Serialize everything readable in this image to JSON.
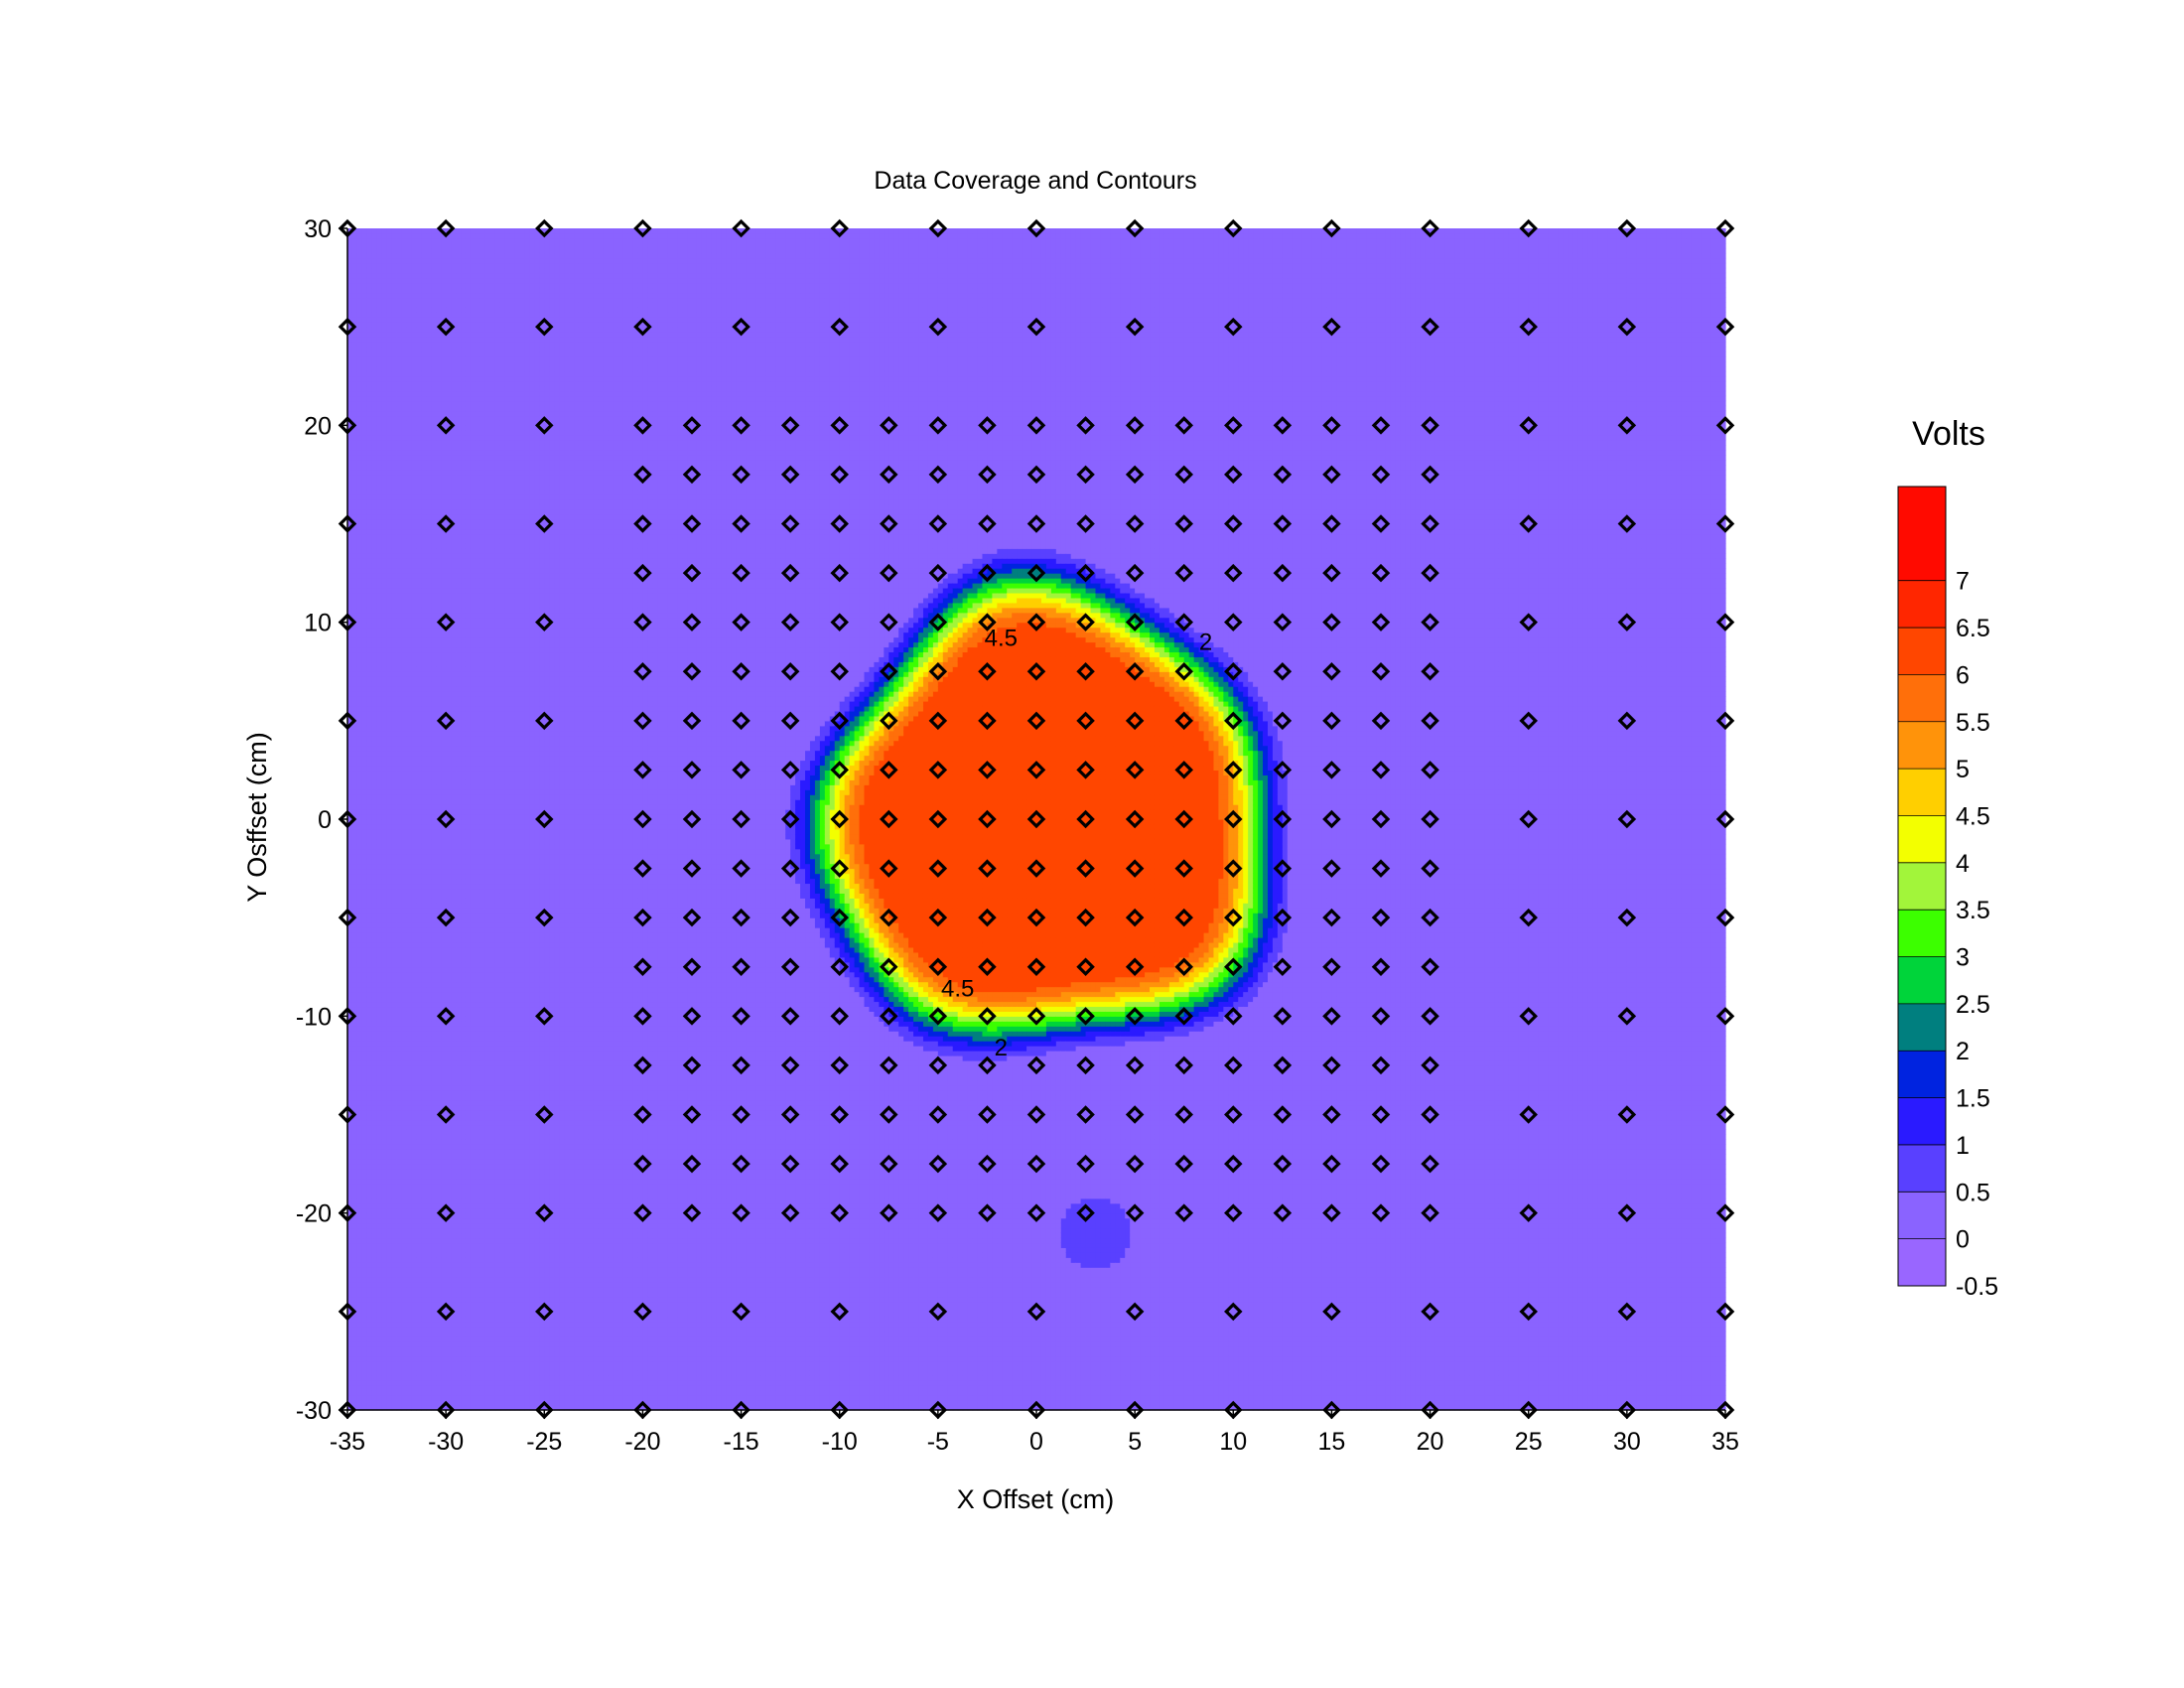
{
  "chart_data": {
    "type": "heatmap",
    "title": "Data Coverage and Contours",
    "xlabel": "X Offset (cm)",
    "ylabel": "Y Osffset (cm)",
    "xlim": [
      -35,
      35
    ],
    "ylim": [
      -30,
      30
    ],
    "x_ticks": [
      "-35",
      "-30",
      "-25",
      "-20",
      "-15",
      "-10",
      "-5",
      "0",
      "5",
      "10",
      "15",
      "20",
      "25",
      "30",
      "35"
    ],
    "y_ticks": [
      "30",
      "20",
      "10",
      "0",
      "-10",
      "-20",
      "-30"
    ],
    "grid": false,
    "marker_shape": "diamond",
    "coarse_grid_step": 5,
    "fine_grid_step": 2.5,
    "fine_grid_x_range": [
      -20,
      20
    ],
    "fine_grid_y_range": [
      -20,
      20
    ],
    "field": {
      "shape": "near-circular plateau",
      "center": [
        0.5,
        0.0
      ],
      "plateau_value": 6.3,
      "plateau_radius": 8.5,
      "edge_width": 5.0,
      "background_value": 0.1,
      "secondary_bump": {
        "center": [
          3,
          -21
        ],
        "peak_value": 0.7,
        "radius": 2
      }
    },
    "contour_labels": [
      {
        "text": "4.5",
        "x": -1.8,
        "y": 9.2
      },
      {
        "text": "2",
        "x": 8.6,
        "y": 9.0
      },
      {
        "text": "4.5",
        "x": -4.0,
        "y": -8.6
      },
      {
        "text": "2",
        "x": -1.8,
        "y": -11.6
      }
    ],
    "legend": {
      "title": "Volts",
      "position": "right",
      "range": [
        -0.5,
        8
      ],
      "tick_labels": [
        "7",
        "6.5",
        "6",
        "5.5",
        "5",
        "4.5",
        "4",
        "3.5",
        "3",
        "2.5",
        "2",
        "1.5",
        "1",
        "0.5",
        "0",
        "-0.5"
      ],
      "tick_values": [
        7,
        6.5,
        6,
        5.5,
        5,
        4.5,
        4,
        3.5,
        3,
        2.5,
        2,
        1.5,
        1,
        0.5,
        0,
        -0.5
      ],
      "bands": [
        {
          "lo": 7.0,
          "hi": 8.0,
          "color": "#ff0a00"
        },
        {
          "lo": 6.5,
          "hi": 7.0,
          "color": "#ff2600"
        },
        {
          "lo": 6.0,
          "hi": 6.5,
          "color": "#ff4600"
        },
        {
          "lo": 5.5,
          "hi": 6.0,
          "color": "#ff6f0a"
        },
        {
          "lo": 5.0,
          "hi": 5.5,
          "color": "#ff930a"
        },
        {
          "lo": 4.5,
          "hi": 5.0,
          "color": "#ffcf00"
        },
        {
          "lo": 4.0,
          "hi": 4.5,
          "color": "#f3ff00"
        },
        {
          "lo": 3.5,
          "hi": 4.0,
          "color": "#a2f53a"
        },
        {
          "lo": 3.0,
          "hi": 3.5,
          "color": "#3cff00"
        },
        {
          "lo": 2.5,
          "hi": 3.0,
          "color": "#00d43a"
        },
        {
          "lo": 2.0,
          "hi": 2.5,
          "color": "#007f7f"
        },
        {
          "lo": 1.5,
          "hi": 2.0,
          "color": "#0023e0"
        },
        {
          "lo": 1.0,
          "hi": 1.5,
          "color": "#2a1aff"
        },
        {
          "lo": 0.5,
          "hi": 1.0,
          "color": "#5940ff"
        },
        {
          "lo": 0.0,
          "hi": 0.5,
          "color": "#8a63ff"
        },
        {
          "lo": -0.5,
          "hi": 0.0,
          "color": "#9966ff"
        }
      ]
    }
  }
}
